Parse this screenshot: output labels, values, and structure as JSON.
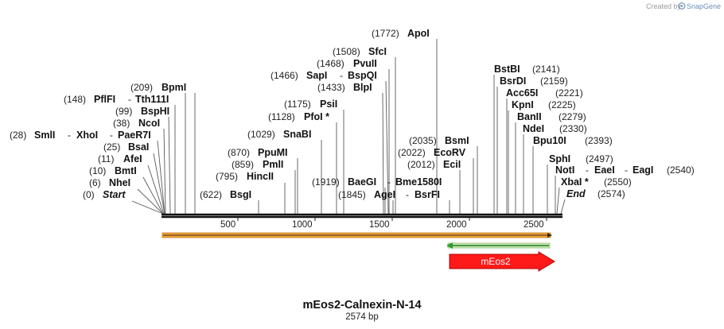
{
  "credit": {
    "prefix": "Created by",
    "brand": "SnapGene"
  },
  "title": "mEos2-Calnexin-N-14",
  "subtitle": "2574 bp",
  "ruler_ticks": [
    "500",
    "1000",
    "1500",
    "2000",
    "2500"
  ],
  "features": {
    "mEos2": {
      "label": "mEos2",
      "color": "#ff1a1a"
    },
    "primer_color": "#2e9b2e",
    "orf_color": "#f2a33a"
  },
  "enzymes": [
    {
      "pos": "(0)",
      "name": "Start",
      "emph": true
    },
    {
      "pos": "(6)",
      "name": "NheI"
    },
    {
      "pos": "(10)",
      "name": "BmtI"
    },
    {
      "pos": "(11)",
      "name": "AfeI"
    },
    {
      "pos": "(25)",
      "name": "BsaI"
    },
    {
      "pos": "(28)",
      "name": "SmlI",
      "name2": "XhoI",
      "name3": "PaeR7I"
    },
    {
      "pos": "(38)",
      "name": "NcoI"
    },
    {
      "pos": "(99)",
      "name": "BspHI"
    },
    {
      "pos": "(148)",
      "name": "PflFI",
      "name2": "Tth111I"
    },
    {
      "pos": "(209)",
      "name": "BpmI"
    },
    {
      "pos": "(622)",
      "name": "BsgI"
    },
    {
      "pos": "(795)",
      "name": "HincII"
    },
    {
      "pos": "(859)",
      "name": "PmlI"
    },
    {
      "pos": "(870)",
      "name": "PpuMI"
    },
    {
      "pos": "(1029)",
      "name": "SnaBI"
    },
    {
      "pos": "(1128)",
      "name": "PfoI *"
    },
    {
      "pos": "(1175)",
      "name": "PsiI"
    },
    {
      "pos": "(1433)",
      "name": "BlpI"
    },
    {
      "pos": "(1466)",
      "name": "SapI",
      "name2": "BspQI"
    },
    {
      "pos": "(1468)",
      "name": "PvuII"
    },
    {
      "pos": "(1508)",
      "name": "SfcI"
    },
    {
      "pos": "(1772)",
      "name": "ApoI"
    },
    {
      "pos": "(1919)",
      "name": "BaeGI",
      "name2": "Bme1580I"
    },
    {
      "pos": "(1845)",
      "name": "AgeI",
      "name2": "BsrFI"
    },
    {
      "pos": "(2012)",
      "name": "EciI"
    },
    {
      "pos": "(2022)",
      "name": "EcoRV"
    },
    {
      "pos": "(2035)",
      "name": "BsmI"
    },
    {
      "pos": "(2141)",
      "name": "BstBI"
    },
    {
      "pos": "(2159)",
      "name": "BsrDI"
    },
    {
      "pos": "(2221)",
      "name": "Acc65I"
    },
    {
      "pos": "(2225)",
      "name": "KpnI"
    },
    {
      "pos": "(2279)",
      "name": "BanII"
    },
    {
      "pos": "(2330)",
      "name": "NdeI"
    },
    {
      "pos": "(2393)",
      "name": "Bpu10I"
    },
    {
      "pos": "(2497)",
      "name": "SphI"
    },
    {
      "pos": "(2540)",
      "name": "NotI",
      "name2": "EaeI",
      "name3": "EagI"
    },
    {
      "pos": "(2550)",
      "name": "XbaI *"
    },
    {
      "pos": "(2574)",
      "name": "End",
      "emph": true
    }
  ]
}
